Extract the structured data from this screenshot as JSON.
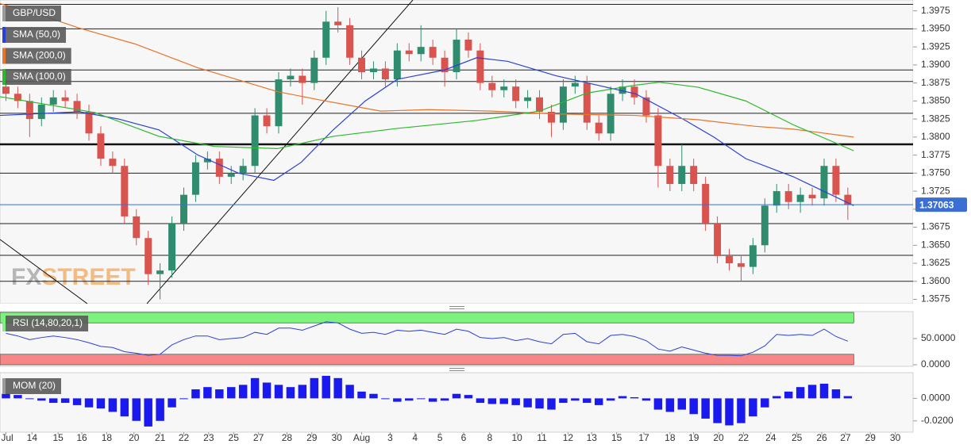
{
  "chart_data": [
    {
      "type": "candlestick",
      "name": "GBP/USD",
      "watermark": "FXSTREET",
      "x": [
        0,
        1,
        2,
        3,
        4,
        5,
        6,
        7,
        8,
        9,
        10,
        11,
        12,
        13,
        14,
        15,
        16,
        17,
        18,
        19,
        20,
        21,
        22,
        23,
        24,
        25,
        26,
        27,
        28,
        29,
        30,
        31,
        32,
        33,
        34,
        35,
        36,
        37,
        38,
        39,
        40,
        41,
        42,
        43,
        44,
        45,
        46,
        47,
        48,
        49,
        50,
        51,
        52,
        53,
        54,
        55,
        56,
        57,
        58,
        59,
        60,
        61,
        62,
        63,
        64,
        65,
        66,
        67,
        68,
        69,
        70,
        71
      ],
      "open": [
        1.387,
        1.386,
        1.385,
        1.3825,
        1.3845,
        1.3855,
        1.385,
        1.3835,
        1.3805,
        1.377,
        1.376,
        1.369,
        1.366,
        1.361,
        1.3615,
        1.368,
        1.372,
        1.3765,
        1.377,
        1.3745,
        1.375,
        1.376,
        1.383,
        1.3815,
        1.388,
        1.3885,
        1.3875,
        1.391,
        1.396,
        1.3955,
        1.391,
        1.389,
        1.3895,
        1.388,
        1.392,
        1.3915,
        1.3925,
        1.391,
        1.389,
        1.3935,
        1.392,
        1.3875,
        1.3865,
        1.387,
        1.385,
        1.3855,
        1.3835,
        1.382,
        1.387,
        1.3875,
        1.382,
        1.3805,
        1.386,
        1.387,
        1.3855,
        1.383,
        1.376,
        1.3735,
        1.376,
        1.3735,
        1.368,
        1.3635,
        1.3625,
        1.362,
        1.365,
        1.3705,
        1.3725,
        1.371,
        1.372,
        1.3715,
        1.376,
        1.372
      ],
      "high": [
        1.388,
        1.387,
        1.386,
        1.3855,
        1.3865,
        1.3865,
        1.386,
        1.3845,
        1.3815,
        1.378,
        1.377,
        1.37,
        1.367,
        1.3625,
        1.369,
        1.373,
        1.3775,
        1.378,
        1.378,
        1.376,
        1.377,
        1.384,
        1.384,
        1.389,
        1.3895,
        1.3895,
        1.392,
        1.3975,
        1.398,
        1.3965,
        1.392,
        1.3905,
        1.3905,
        1.393,
        1.393,
        1.3955,
        1.3935,
        1.392,
        1.395,
        1.3945,
        1.393,
        1.3885,
        1.388,
        1.388,
        1.3865,
        1.3865,
        1.3845,
        1.388,
        1.3885,
        1.3885,
        1.383,
        1.387,
        1.388,
        1.388,
        1.3865,
        1.384,
        1.377,
        1.379,
        1.377,
        1.3745,
        1.369,
        1.3645,
        1.3635,
        1.366,
        1.3715,
        1.3735,
        1.3735,
        1.373,
        1.373,
        1.377,
        1.377,
        1.373
      ],
      "low": [
        1.385,
        1.384,
        1.38,
        1.3815,
        1.3835,
        1.384,
        1.3825,
        1.3795,
        1.376,
        1.375,
        1.368,
        1.365,
        1.3595,
        1.3575,
        1.3605,
        1.367,
        1.371,
        1.3755,
        1.3735,
        1.3735,
        1.374,
        1.375,
        1.3805,
        1.3805,
        1.387,
        1.3845,
        1.3865,
        1.39,
        1.3945,
        1.39,
        1.388,
        1.388,
        1.387,
        1.387,
        1.3905,
        1.3905,
        1.39,
        1.387,
        1.388,
        1.391,
        1.3865,
        1.3855,
        1.3855,
        1.384,
        1.384,
        1.3825,
        1.38,
        1.381,
        1.386,
        1.381,
        1.3795,
        1.3795,
        1.385,
        1.3845,
        1.382,
        1.373,
        1.3725,
        1.3725,
        1.3725,
        1.367,
        1.3625,
        1.3615,
        1.36,
        1.361,
        1.364,
        1.3695,
        1.37,
        1.3695,
        1.3705,
        1.3705,
        1.371,
        1.3685
      ],
      "close": [
        1.386,
        1.385,
        1.3825,
        1.3845,
        1.3855,
        1.385,
        1.3835,
        1.3805,
        1.377,
        1.376,
        1.369,
        1.366,
        1.361,
        1.3615,
        1.368,
        1.372,
        1.3765,
        1.377,
        1.3745,
        1.375,
        1.376,
        1.383,
        1.3815,
        1.388,
        1.3885,
        1.3875,
        1.391,
        1.396,
        1.3955,
        1.391,
        1.389,
        1.3895,
        1.388,
        1.392,
        1.3915,
        1.3925,
        1.391,
        1.389,
        1.3935,
        1.392,
        1.3875,
        1.3865,
        1.387,
        1.385,
        1.3855,
        1.3835,
        1.382,
        1.387,
        1.3875,
        1.382,
        1.3805,
        1.386,
        1.387,
        1.3855,
        1.383,
        1.376,
        1.3735,
        1.376,
        1.3735,
        1.368,
        1.3635,
        1.3625,
        1.362,
        1.365,
        1.3705,
        1.3725,
        1.371,
        1.372,
        1.3715,
        1.376,
        1.372,
        1.3706
      ],
      "up_color": "#2f8c6e",
      "down_color": "#d9534f",
      "series": [
        {
          "name": "SMA (50,0)",
          "color": "#2b3fd9",
          "x": [
            -0.5,
            6.2,
            9.5,
            12.9,
            16.2,
            19.6,
            22.6,
            24.9,
            27.6,
            30.3,
            33,
            37,
            39.7,
            42.3,
            46.4,
            50.4,
            53.1,
            57.1,
            59.7,
            62.4,
            66.4,
            71.5
          ],
          "values": [
            1.383,
            1.3835,
            1.3825,
            1.381,
            1.3775,
            1.375,
            1.374,
            1.3765,
            1.381,
            1.385,
            1.388,
            1.3893,
            1.391,
            1.3905,
            1.3885,
            1.387,
            1.386,
            1.3825,
            1.38,
            1.377,
            1.3745,
            1.3705
          ]
        },
        {
          "name": "SMA (200,0)",
          "color": "#e8732a",
          "x": [
            -0.5,
            2.2,
            6.2,
            10.9,
            16.2,
            22.9,
            26.3,
            31.6,
            35.6,
            41,
            46.4,
            53.1,
            58.4,
            63.1,
            66.4,
            71.5
          ],
          "values": [
            1.3985,
            1.3973,
            1.3951,
            1.3929,
            1.3896,
            1.3863,
            1.3852,
            1.3836,
            1.3838,
            1.3836,
            1.3832,
            1.383,
            1.3824,
            1.3815,
            1.3811,
            1.38
          ]
        },
        {
          "name": "SMA (100,0)",
          "color": "#2db82d",
          "x": [
            -0.5,
            3.5,
            7.5,
            12.9,
            17.6,
            22.9,
            27.6,
            33,
            39.7,
            45,
            49,
            53.1,
            55.1,
            58.4,
            62.4,
            66.4,
            71.5
          ],
          "values": [
            1.3856,
            1.3845,
            1.3834,
            1.3801,
            1.3787,
            1.3784,
            1.3801,
            1.3812,
            1.3823,
            1.3836,
            1.3861,
            1.3872,
            1.3876,
            1.3869,
            1.385,
            1.3817,
            1.3781
          ]
        }
      ],
      "levels": [
        1.3984,
        1.395,
        1.3893,
        1.3877,
        1.3833,
        1.375,
        1.368,
        1.3636,
        1.36
      ],
      "major_level": 1.379,
      "last_price": 1.37063,
      "last_price_color": "#3b6fd6",
      "xlim": [
        -0.5,
        76.5
      ],
      "ylim": [
        1.3569,
        1.399
      ],
      "yticks": [
        1.3575,
        {
          "value": 1.36,
          "label": "1.3600"
        },
        1.3625,
        {
          "value": 1.365,
          "label": "1.3650"
        },
        1.3675,
        {
          "value": 1.37,
          "label": "1.3700"
        },
        1.3725,
        {
          "value": 1.375,
          "label": "1.3750"
        },
        1.3775,
        {
          "value": 1.38,
          "label": "1.3800"
        },
        1.3825,
        {
          "value": 1.385,
          "label": "1.3850"
        },
        1.3875,
        {
          "value": 1.39,
          "label": "1.3900"
        },
        1.3925,
        {
          "value": 1.395,
          "label": "1.3950"
        },
        1.3975
      ]
    },
    {
      "type": "line",
      "x": [
        0,
        1,
        2,
        3,
        4,
        5,
        6,
        7,
        8,
        9,
        10,
        11,
        12,
        13,
        14,
        15,
        16,
        17,
        18,
        19,
        20,
        21,
        22,
        23,
        24,
        25,
        26,
        27,
        28,
        29,
        30,
        31,
        32,
        33,
        34,
        35,
        36,
        37,
        38,
        39,
        40,
        41,
        42,
        43,
        44,
        45,
        46,
        47,
        48,
        49,
        50,
        51,
        52,
        53,
        54,
        55,
        56,
        57,
        58,
        59,
        60,
        61,
        62,
        63,
        64,
        65,
        66,
        67,
        68,
        69,
        70,
        71
      ],
      "series": [
        {
          "name": "RSI (14,80,20,1)",
          "color": "#2b3fd9",
          "values": [
            60,
            55,
            48,
            52,
            55,
            52,
            48,
            42,
            35,
            33,
            25,
            22,
            18,
            20,
            38,
            48,
            55,
            55,
            48,
            50,
            52,
            62,
            58,
            70,
            70,
            66,
            74,
            82,
            80,
            68,
            60,
            62,
            58,
            66,
            64,
            66,
            62,
            58,
            68,
            64,
            52,
            50,
            52,
            46,
            50,
            44,
            40,
            58,
            60,
            44,
            40,
            56,
            58,
            54,
            46,
            30,
            26,
            34,
            28,
            22,
            18,
            18,
            17,
            24,
            36,
            58,
            56,
            58,
            56,
            68,
            54,
            45
          ]
        }
      ],
      "bands": [
        {
          "from": 80,
          "to": 100,
          "color": "#7df27d"
        },
        {
          "from": 0,
          "to": 20,
          "color": "#f78787"
        }
      ],
      "xlim": [
        -0.5,
        76.5
      ],
      "ylim": [
        -3,
        101.5
      ],
      "yticks": [
        {
          "value": 0,
          "label": "0.0000"
        },
        {
          "value": 50,
          "label": "50.0000"
        }
      ]
    },
    {
      "type": "bar",
      "x": [
        0,
        1,
        2,
        3,
        4,
        5,
        6,
        7,
        8,
        9,
        10,
        11,
        12,
        13,
        14,
        15,
        16,
        17,
        18,
        19,
        20,
        21,
        22,
        23,
        24,
        25,
        26,
        27,
        28,
        29,
        30,
        31,
        32,
        33,
        34,
        35,
        36,
        37,
        38,
        39,
        40,
        41,
        42,
        43,
        44,
        45,
        46,
        47,
        48,
        49,
        50,
        51,
        52,
        53,
        54,
        55,
        56,
        57,
        58,
        59,
        60,
        61,
        62,
        63,
        64,
        65,
        66,
        67,
        68,
        69,
        70,
        71
      ],
      "series": [
        {
          "name": "MOM (20)",
          "color": "#1a1aee",
          "values": [
            0.004,
            0.003,
            0,
            -0.002,
            -0.004,
            -0.004,
            -0.006,
            -0.008,
            -0.009,
            -0.012,
            -0.016,
            -0.02,
            -0.025,
            -0.02,
            -0.008,
            0,
            0.008,
            0.01,
            0.008,
            0.01,
            0.012,
            0.018,
            0.014,
            0.012,
            0.01,
            0.012,
            0.018,
            0.02,
            0.018,
            0.012,
            0.006,
            0.004,
            0,
            -0.003,
            -0.002,
            0,
            -0.003,
            -0.002,
            0.004,
            0.003,
            -0.004,
            -0.005,
            -0.005,
            -0.006,
            -0.008,
            -0.009,
            -0.01,
            -0.004,
            -0.002,
            -0.004,
            -0.006,
            -0.002,
            0.002,
            0.001,
            -0.002,
            -0.01,
            -0.012,
            -0.01,
            -0.014,
            -0.018,
            -0.022,
            -0.024,
            -0.022,
            -0.016,
            -0.008,
            0.002,
            0.006,
            0.01,
            0.012,
            0.013,
            0.008,
            0.002
          ]
        }
      ],
      "xlim": [
        -0.5,
        76.5
      ],
      "ylim": [
        -0.03,
        0.0228
      ],
      "yticks": [
        {
          "value": -0.02,
          "label": "-0.0200"
        },
        {
          "value": 0,
          "label": "0.0000"
        }
      ],
      "xticks": [
        {
          "value": 0,
          "label": "Jul"
        },
        {
          "value": 2.2,
          "label": "14"
        },
        {
          "value": 4.4,
          "label": "15"
        },
        {
          "value": 6.4,
          "label": "16"
        },
        {
          "value": 8.5,
          "label": "18"
        },
        {
          "value": 10.8,
          "label": "20"
        },
        {
          "value": 13,
          "label": "21"
        },
        {
          "value": 15,
          "label": "22"
        },
        {
          "value": 17.1,
          "label": "23"
        },
        {
          "value": 19.2,
          "label": "25"
        },
        {
          "value": 21.3,
          "label": "27"
        },
        {
          "value": 23.7,
          "label": "28"
        },
        {
          "value": 25.8,
          "label": "29"
        },
        {
          "value": 27.9,
          "label": "30"
        },
        {
          "value": 30,
          "label": "Aug"
        },
        {
          "value": 32.4,
          "label": "3"
        },
        {
          "value": 34.5,
          "label": "4"
        },
        {
          "value": 36.6,
          "label": "5"
        },
        {
          "value": 38.6,
          "label": "6"
        },
        {
          "value": 40.8,
          "label": "8"
        },
        {
          "value": 43.1,
          "label": "10"
        },
        {
          "value": 45.2,
          "label": "11"
        },
        {
          "value": 47.4,
          "label": "12"
        },
        {
          "value": 49.4,
          "label": "13"
        },
        {
          "value": 51.5,
          "label": "15"
        },
        {
          "value": 53.8,
          "label": "17"
        },
        {
          "value": 56,
          "label": "18"
        },
        {
          "value": 58,
          "label": "19"
        },
        {
          "value": 60.1,
          "label": "20"
        },
        {
          "value": 62.2,
          "label": "22"
        },
        {
          "value": 64.5,
          "label": "24"
        },
        {
          "value": 66.7,
          "label": "25"
        },
        {
          "value": 68.8,
          "label": "26"
        },
        {
          "value": 70.8,
          "label": "27"
        },
        {
          "value": 72.9,
          "label": "29"
        },
        {
          "value": 75,
          "label": "30"
        }
      ]
    }
  ]
}
